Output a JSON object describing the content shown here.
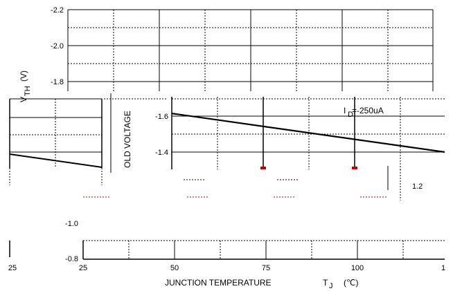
{
  "chart_data": {
    "type": "line",
    "x_ticks": [
      "25",
      "50",
      "75",
      "100",
      "1"
    ],
    "y_ticks_top": [
      "-2.2",
      "-2.0",
      "-1.8"
    ],
    "y_ticks_mid": [
      "-1.6",
      "-1.4"
    ],
    "y_ticks_bottom": [
      "-1.0",
      "-0.8"
    ],
    "left_fragment_tick": "25",
    "xlabel": "JUNCTION TEMPERATURE",
    "xlabel_symbol": "T",
    "xlabel_sub": "J",
    "xlabel_unit": "(℃)",
    "ylabel_top_v": "V",
    "ylabel_top_sub": "TH",
    "ylabel_top_unit": "(V)",
    "ylabel_mid": "OLD VOLTAGE",
    "annotation_i": "I",
    "annotation_sub": "D",
    "annotation_value": "=-250uA",
    "fragment_right_text": "1.2",
    "x": [
      25,
      125
    ],
    "y": [
      -1.615,
      -1.4
    ],
    "xlim": [
      25,
      125
    ],
    "ylim": [
      -2.2,
      -0.8
    ],
    "grid": true
  }
}
